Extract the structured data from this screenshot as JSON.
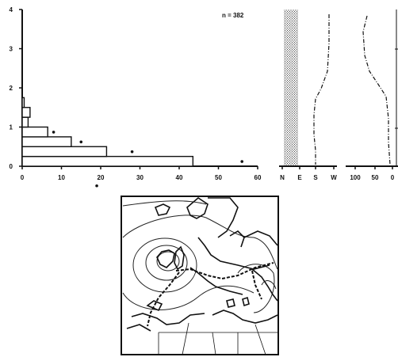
{
  "annotation": "n = 382",
  "chart_data": [
    {
      "type": "bar",
      "orientation": "horizontal",
      "title": "",
      "xlabel": "",
      "ylabel": "",
      "y_ticks": [
        "0",
        "1",
        "2",
        "3",
        "4"
      ],
      "x_ticks": [
        "0",
        "10",
        "20",
        "30",
        "40",
        "50",
        "60"
      ],
      "xlim": [
        0,
        60
      ],
      "ylim": [
        0,
        4
      ],
      "bars": [
        {
          "y0": 0.0,
          "y1": 0.25,
          "value": 43.5
        },
        {
          "y0": 0.25,
          "y1": 0.5,
          "value": 21.5
        },
        {
          "y0": 0.5,
          "y1": 0.75,
          "value": 12.5
        },
        {
          "y0": 0.75,
          "y1": 1.0,
          "value": 6.5
        },
        {
          "y0": 1.0,
          "y1": 1.25,
          "value": 1.5
        },
        {
          "y0": 1.25,
          "y1": 1.5,
          "value": 2.0
        },
        {
          "y0": 1.5,
          "y1": 1.75,
          "value": 0.5
        }
      ],
      "points": [
        {
          "x": 56,
          "y": 0.12
        },
        {
          "x": 28,
          "y": 0.37
        },
        {
          "x": 15,
          "y": 0.62
        },
        {
          "x": 8,
          "y": 0.87
        },
        {
          "x": 19,
          "y": -0.5
        }
      ]
    },
    {
      "type": "line",
      "x_ticks": [
        "N",
        "E",
        "S",
        "W"
      ],
      "shaded_band": [
        "N",
        "E"
      ]
    },
    {
      "type": "line",
      "x_ticks": [
        "100",
        "50",
        "0"
      ]
    }
  ],
  "map": {
    "description_icon": "synoptic-map"
  }
}
